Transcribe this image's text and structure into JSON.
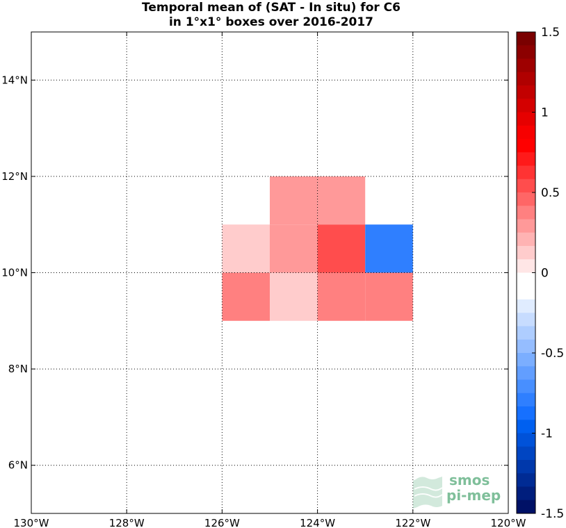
{
  "chart_data": {
    "type": "heatmap",
    "title": [
      "Temporal mean of (SAT - In situ) for C6",
      "in 1°x1° boxes over 2016-2017"
    ],
    "xlabel": "",
    "ylabel": "",
    "x_range": [
      -130,
      -120
    ],
    "y_range": [
      5,
      15
    ],
    "x_ticks": [
      -130,
      -128,
      -126,
      -124,
      -122,
      -120
    ],
    "x_tick_labels": [
      "130°W",
      "128°W",
      "126°W",
      "124°W",
      "122°W",
      "120°W"
    ],
    "y_ticks": [
      6,
      8,
      10,
      12,
      14
    ],
    "y_tick_labels": [
      "6°N",
      "8°N",
      "10°N",
      "12°N",
      "14°N"
    ],
    "grid": true,
    "cells": [
      {
        "lon": [
          -126,
          -125
        ],
        "lat": [
          10,
          11
        ],
        "value": 0.15
      },
      {
        "lon": [
          -125,
          -124
        ],
        "lat": [
          10,
          11
        ],
        "value": 0.3
      },
      {
        "lon": [
          -125,
          -124
        ],
        "lat": [
          11,
          12
        ],
        "value": 0.3
      },
      {
        "lon": [
          -124,
          -123
        ],
        "lat": [
          11,
          12
        ],
        "value": 0.3
      },
      {
        "lon": [
          -124,
          -123
        ],
        "lat": [
          10,
          11
        ],
        "value": 0.55
      },
      {
        "lon": [
          -123,
          -122
        ],
        "lat": [
          10,
          11
        ],
        "value": -0.8
      },
      {
        "lon": [
          -126,
          -125
        ],
        "lat": [
          9,
          10
        ],
        "value": 0.4
      },
      {
        "lon": [
          -125,
          -124
        ],
        "lat": [
          9,
          10
        ],
        "value": 0.15
      },
      {
        "lon": [
          -124,
          -123
        ],
        "lat": [
          9,
          10
        ],
        "value": 0.4
      },
      {
        "lon": [
          -123,
          -122
        ],
        "lat": [
          9,
          10
        ],
        "value": 0.4
      }
    ],
    "colorbar": {
      "range": [
        -1.5,
        1.5
      ],
      "ticks": [
        1.5,
        1,
        0.5,
        0,
        -0.5,
        -1,
        -1.5
      ],
      "tick_labels": [
        "1.5",
        "1",
        "0.5",
        "0",
        "-0.5",
        "-1",
        "-1.5"
      ],
      "colors": [
        "#7a0000",
        "#8c0000",
        "#9e0000",
        "#b00000",
        "#c20000",
        "#d40000",
        "#e60000",
        "#f70000",
        "#ff0000",
        "#ff1a1a",
        "#ff3333",
        "#ff4d4d",
        "#ff6666",
        "#ff8080",
        "#ff9999",
        "#ffb3b3",
        "#ffcccc",
        "#ffe6e6",
        "#ffffff",
        "#ffffff",
        "#e0ecff",
        "#c7dcff",
        "#aecdff",
        "#95bdff",
        "#7baeff",
        "#629eff",
        "#488fff",
        "#2f7fff",
        "#1670ff",
        "#0060f0",
        "#0052d9",
        "#0045c2",
        "#0038ab",
        "#002b94",
        "#001e7d",
        "#001166"
      ]
    },
    "axis_color": "#000000",
    "grid_color": "#000000"
  },
  "logo": {
    "line1": "smos",
    "line2": "pi-mep",
    "color": "#7fbf9a"
  }
}
